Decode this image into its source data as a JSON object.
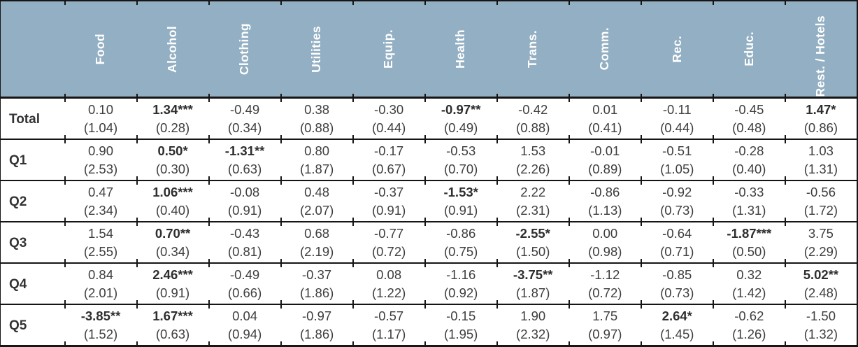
{
  "table": {
    "name": "expenditure-quintile-regression-table",
    "columns": [
      "Food",
      "Alcohol",
      "Clothing",
      "Utilities",
      "Equip.",
      "Health",
      "Trans.",
      "Comm.",
      "Rec.",
      "Educ.",
      "Rest. / Hotels"
    ],
    "note_last_column_clipped": "est. / Hotels",
    "rows": [
      {
        "label": "Total",
        "cells": [
          {
            "v": "0.10",
            "stars": "",
            "bold": false,
            "se": "(1.04)"
          },
          {
            "v": "1.34",
            "stars": "***",
            "bold": true,
            "se": "(0.28)"
          },
          {
            "v": "-0.49",
            "stars": "",
            "bold": false,
            "se": "(0.34)"
          },
          {
            "v": "0.38",
            "stars": "",
            "bold": false,
            "se": "(0.88)"
          },
          {
            "v": "-0.30",
            "stars": "",
            "bold": false,
            "se": "(0.44)"
          },
          {
            "v": "-0.97",
            "stars": "**",
            "bold": true,
            "se": "(0.49)"
          },
          {
            "v": "-0.42",
            "stars": "",
            "bold": false,
            "se": "(0.88)"
          },
          {
            "v": "0.01",
            "stars": "",
            "bold": false,
            "se": "(0.41)"
          },
          {
            "v": "-0.11",
            "stars": "",
            "bold": false,
            "se": "(0.44)"
          },
          {
            "v": "-0.45",
            "stars": "",
            "bold": false,
            "se": "(0.48)"
          },
          {
            "v": "1.47",
            "stars": "*",
            "bold": true,
            "se": "(0.86)"
          }
        ]
      },
      {
        "label": "Q1",
        "cells": [
          {
            "v": "0.90",
            "stars": "",
            "bold": false,
            "se": "(2.53)"
          },
          {
            "v": "0.50",
            "stars": "*",
            "bold": true,
            "se": "(0.30)"
          },
          {
            "v": "-1.31",
            "stars": "**",
            "bold": true,
            "se": "(0.63)"
          },
          {
            "v": "0.80",
            "stars": "",
            "bold": false,
            "se": "(1.87)"
          },
          {
            "v": "-0.17",
            "stars": "",
            "bold": false,
            "se": "(0.67)"
          },
          {
            "v": "-0.53",
            "stars": "",
            "bold": false,
            "se": "(0.70)"
          },
          {
            "v": "1.53",
            "stars": "",
            "bold": false,
            "se": "(2.26)"
          },
          {
            "v": "-0.01",
            "stars": "",
            "bold": false,
            "se": "(0.89)"
          },
          {
            "v": "-0.51",
            "stars": "",
            "bold": false,
            "se": "(1.05)"
          },
          {
            "v": "-0.28",
            "stars": "",
            "bold": false,
            "se": "(0.40)"
          },
          {
            "v": "1.03",
            "stars": "",
            "bold": false,
            "se": "(1.31)"
          }
        ]
      },
      {
        "label": "Q2",
        "cells": [
          {
            "v": "0.47",
            "stars": "",
            "bold": false,
            "se": "(2.34)"
          },
          {
            "v": "1.06",
            "stars": "***",
            "bold": true,
            "se": "(0.40)"
          },
          {
            "v": "-0.08",
            "stars": "",
            "bold": false,
            "se": "(0.91)"
          },
          {
            "v": "0.48",
            "stars": "",
            "bold": false,
            "se": "(2.07)"
          },
          {
            "v": "-0.37",
            "stars": "",
            "bold": false,
            "se": "(0.91)"
          },
          {
            "v": "-1.53",
            "stars": "*",
            "bold": true,
            "se": "(0.91)"
          },
          {
            "v": "2.22",
            "stars": "",
            "bold": false,
            "se": "(2.31)"
          },
          {
            "v": "-0.86",
            "stars": "",
            "bold": false,
            "se": "(1.13)"
          },
          {
            "v": "-0.92",
            "stars": "",
            "bold": false,
            "se": "(0.73)"
          },
          {
            "v": "-0.33",
            "stars": "",
            "bold": false,
            "se": "(1.31)"
          },
          {
            "v": "-0.56",
            "stars": "",
            "bold": false,
            "se": "(1.72)"
          }
        ]
      },
      {
        "label": "Q3",
        "cells": [
          {
            "v": "1.54",
            "stars": "",
            "bold": false,
            "se": "(2.55)"
          },
          {
            "v": "0.70",
            "stars": "**",
            "bold": true,
            "se": "(0.34)"
          },
          {
            "v": "-0.43",
            "stars": "",
            "bold": false,
            "se": "(0.81)"
          },
          {
            "v": "0.68",
            "stars": "",
            "bold": false,
            "se": "(2.19)"
          },
          {
            "v": "-0.77",
            "stars": "",
            "bold": false,
            "se": "(0.72)"
          },
          {
            "v": "-0.86",
            "stars": "",
            "bold": false,
            "se": "(0.75)"
          },
          {
            "v": "-2.55",
            "stars": "*",
            "bold": true,
            "se": "(1.50)"
          },
          {
            "v": "0.00",
            "stars": "",
            "bold": false,
            "se": "(0.98)"
          },
          {
            "v": "-0.64",
            "stars": "",
            "bold": false,
            "se": "(0.71)"
          },
          {
            "v": "-1.87",
            "stars": "***",
            "bold": true,
            "se": "(0.50)"
          },
          {
            "v": "3.75",
            "stars": "",
            "bold": false,
            "se": "(2.29)"
          }
        ]
      },
      {
        "label": "Q4",
        "cells": [
          {
            "v": "0.84",
            "stars": "",
            "bold": false,
            "se": "(2.01)"
          },
          {
            "v": "2.46",
            "stars": "***",
            "bold": true,
            "se": "(0.91)"
          },
          {
            "v": "-0.49",
            "stars": "",
            "bold": false,
            "se": "(0.66)"
          },
          {
            "v": "-0.37",
            "stars": "",
            "bold": false,
            "se": "(1.86)"
          },
          {
            "v": "0.08",
            "stars": "",
            "bold": false,
            "se": "(1.22)"
          },
          {
            "v": "-1.16",
            "stars": "",
            "bold": false,
            "se": "(0.92)"
          },
          {
            "v": "-3.75",
            "stars": "**",
            "bold": true,
            "se": "(1.87)"
          },
          {
            "v": "-1.12",
            "stars": "",
            "bold": false,
            "se": "(0.72)"
          },
          {
            "v": "-0.85",
            "stars": "",
            "bold": false,
            "se": "(0.73)"
          },
          {
            "v": "0.32",
            "stars": "",
            "bold": false,
            "se": "(1.42)"
          },
          {
            "v": "5.02",
            "stars": "**",
            "bold": true,
            "se": "(2.48)"
          }
        ]
      },
      {
        "label": "Q5",
        "cells": [
          {
            "v": "-3.85",
            "stars": "**",
            "bold": true,
            "se": "(1.52)"
          },
          {
            "v": "1.67",
            "stars": "***",
            "bold": true,
            "se": "(0.63)"
          },
          {
            "v": "0.04",
            "stars": "",
            "bold": false,
            "se": "(0.94)"
          },
          {
            "v": "-0.97",
            "stars": "",
            "bold": false,
            "se": "(1.86)"
          },
          {
            "v": "-0.57",
            "stars": "",
            "bold": false,
            "se": "(1.17)"
          },
          {
            "v": "-0.15",
            "stars": "",
            "bold": false,
            "se": "(1.95)"
          },
          {
            "v": "1.90",
            "stars": "",
            "bold": false,
            "se": "(2.32)"
          },
          {
            "v": "1.75",
            "stars": "",
            "bold": false,
            "se": "(0.97)"
          },
          {
            "v": "2.64",
            "stars": "*",
            "bold": true,
            "se": "(1.45)"
          },
          {
            "v": "-0.62",
            "stars": "",
            "bold": false,
            "se": "(1.26)"
          },
          {
            "v": "-1.50",
            "stars": "",
            "bold": false,
            "se": "(1.32)"
          }
        ]
      }
    ]
  },
  "colors": {
    "header_bg": "#93afc3",
    "header_text": "#ffffff",
    "rule": "#151515",
    "body_text": "#3e3e3e"
  }
}
